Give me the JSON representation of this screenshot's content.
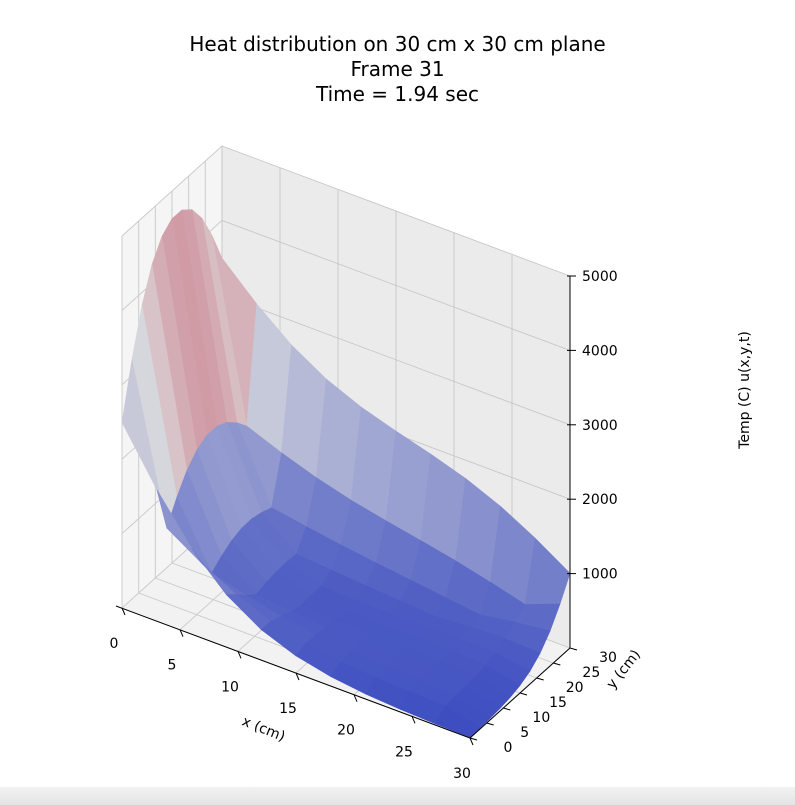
{
  "chart_data": {
    "type": "surface",
    "title_lines": [
      "Heat distribution on 30 cm x 30 cm plane",
      "Frame 31",
      "Time = 1.94 sec"
    ],
    "xlabel": "x (cm)",
    "ylabel": "y (cm)",
    "zlabel": "Temp (C) u(x,y,t)",
    "x_ticks": [
      0,
      5,
      10,
      15,
      20,
      25,
      30
    ],
    "y_ticks": [
      0,
      5,
      10,
      15,
      20,
      25,
      30
    ],
    "z_ticks": [
      1000,
      2000,
      3000,
      4000,
      5000
    ],
    "xlim": [
      0,
      30
    ],
    "ylim": [
      0,
      30
    ],
    "zlim": [
      0,
      5000
    ],
    "colormap": "coolwarm",
    "colors": {
      "low": "#3b4cc0",
      "mid": "#dddddd",
      "high": "#b40426"
    },
    "grid": true,
    "surface": {
      "x": [
        0,
        3,
        6,
        9,
        12,
        15,
        18,
        21,
        24,
        27,
        30
      ],
      "y": [
        0,
        3,
        6,
        9,
        12,
        15,
        18,
        21,
        24,
        27,
        30
      ],
      "edge_temps": {
        "x0": 5000,
        "y30": 2000,
        "x30": 0,
        "y0": 0
      },
      "min_temp": 200
    }
  }
}
